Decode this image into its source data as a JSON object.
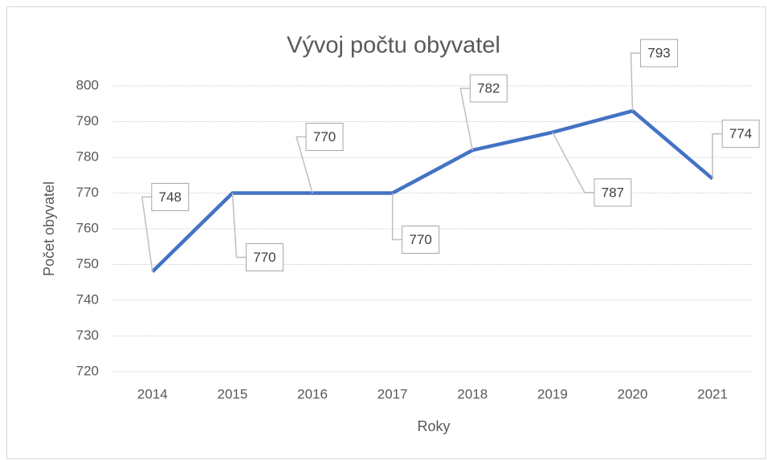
{
  "chart_data": {
    "type": "line",
    "title": "Vývoj počtu obyvatel",
    "x_label": "Roky",
    "y_label": "Počet obyvatel",
    "categories": [
      "2014",
      "2015",
      "2016",
      "2017",
      "2018",
      "2019",
      "2020",
      "2021"
    ],
    "series": [
      {
        "name": "Počet obyvatel",
        "color": "#4472c4",
        "values": [
          748,
          770,
          770,
          770,
          782,
          787,
          793,
          774
        ]
      }
    ],
    "ylim": [
      720,
      800
    ],
    "yticks": [
      720,
      730,
      740,
      750,
      760,
      770,
      780,
      790,
      800
    ],
    "grid": true,
    "data_labels": true
  }
}
